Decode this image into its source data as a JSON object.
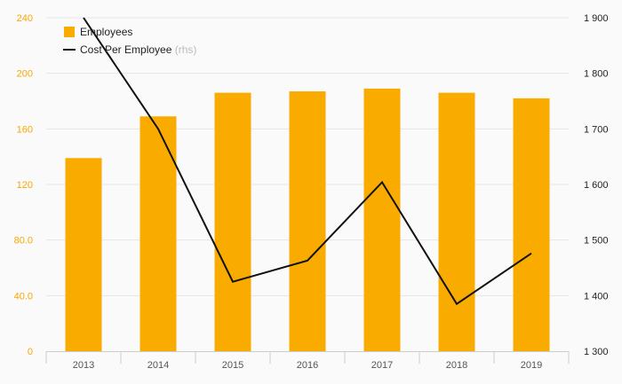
{
  "chart_data": {
    "type": "bar",
    "categories": [
      "2013",
      "2014",
      "2015",
      "2016",
      "2017",
      "2018",
      "2019"
    ],
    "series": [
      {
        "name": "Employees",
        "type": "bar",
        "axis": "left",
        "color": "#f9ab00",
        "values": [
          139,
          169,
          186,
          187,
          189,
          186,
          182
        ]
      },
      {
        "name": "Cost Per Employee",
        "name_suffix": "(rhs)",
        "type": "line",
        "axis": "right",
        "color": "#111111",
        "values": [
          1900,
          1700,
          1425,
          1463,
          1604,
          1385,
          1476
        ]
      }
    ],
    "left_axis": {
      "ylim": [
        0,
        240
      ],
      "ticks": [
        0,
        40,
        80,
        120,
        160,
        200,
        240
      ],
      "tick_labels": [
        "0",
        "40.0",
        "80.0",
        "120",
        "160",
        "200",
        "240"
      ],
      "label_color": "#f5a800"
    },
    "right_axis": {
      "ylim": [
        1300,
        1900
      ],
      "ticks": [
        1300,
        1400,
        1500,
        1600,
        1700,
        1800,
        1900
      ],
      "tick_labels": [
        "1 300",
        "1 400",
        "1 500",
        "1 600",
        "1 700",
        "1 800",
        "1 900"
      ],
      "label_color": "#222222"
    },
    "grid": true,
    "legend": {
      "position": "top-left"
    }
  }
}
